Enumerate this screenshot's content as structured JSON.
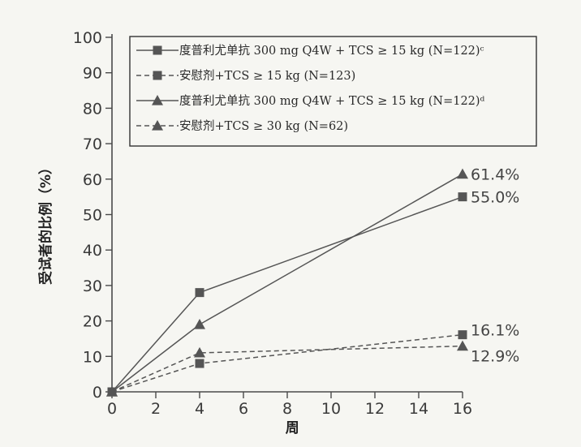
{
  "chart_data": {
    "type": "line",
    "xlabel": "周",
    "ylabel": "受试者的比例（%）",
    "xlim": [
      0,
      16
    ],
    "ylim": [
      0,
      100
    ],
    "x_ticks": [
      0,
      2,
      4,
      6,
      8,
      10,
      12,
      14,
      16
    ],
    "y_ticks": [
      0,
      10,
      20,
      30,
      40,
      50,
      60,
      70,
      80,
      90,
      100
    ],
    "grid": false,
    "legend_position": "top-left",
    "series": [
      {
        "name": "度普利尤单抗 300 mg Q4W + TCS ≥ 15 kg (N=122)ᶜ",
        "marker": "square",
        "line": "solid",
        "x": [
          0,
          4,
          16
        ],
        "values": [
          0,
          28,
          55.0
        ],
        "end_label": "55.0%"
      },
      {
        "name": "安慰剂+TCS ≥ 15 kg (N=123)",
        "marker": "square",
        "line": "dashed",
        "x": [
          0,
          4,
          16
        ],
        "values": [
          0,
          8,
          16.1
        ],
        "end_label": "16.1%"
      },
      {
        "name": "度普利尤单抗 300 mg Q4W + TCS ≥ 15 kg (N=122)ᵈ",
        "marker": "triangle",
        "line": "solid",
        "x": [
          0,
          4,
          16
        ],
        "values": [
          0,
          19,
          61.4
        ],
        "end_label": "61.4%"
      },
      {
        "name": "安慰剂+TCS ≥ 30 kg (N=62)",
        "marker": "triangle",
        "line": "dashed",
        "x": [
          0,
          4,
          16
        ],
        "values": [
          0,
          11,
          12.9
        ],
        "end_label": "12.9%"
      }
    ]
  }
}
